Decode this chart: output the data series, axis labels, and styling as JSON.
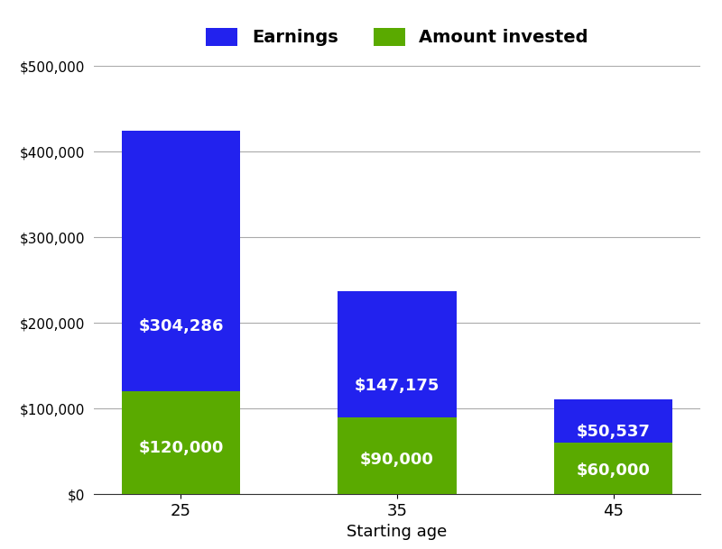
{
  "categories": [
    "25",
    "35",
    "45"
  ],
  "xlabel": "Starting age",
  "invested": [
    120000,
    90000,
    60000
  ],
  "earnings": [
    304286,
    147175,
    50537
  ],
  "invested_color": "#5aaa00",
  "earnings_color": "#2222ee",
  "invested_label": "Amount invested",
  "earnings_label": "Earnings",
  "ylim": [
    0,
    500000
  ],
  "yticks": [
    0,
    100000,
    200000,
    300000,
    400000,
    500000
  ],
  "invested_labels": [
    "$120,000",
    "$90,000",
    "$60,000"
  ],
  "earnings_labels": [
    "$304,286",
    "$147,175",
    "$50,537"
  ],
  "label_color": "#ffffff",
  "label_fontsize": 13,
  "bar_width": 0.55,
  "background_color": "#ffffff",
  "grid_color": "#aaaaaa"
}
